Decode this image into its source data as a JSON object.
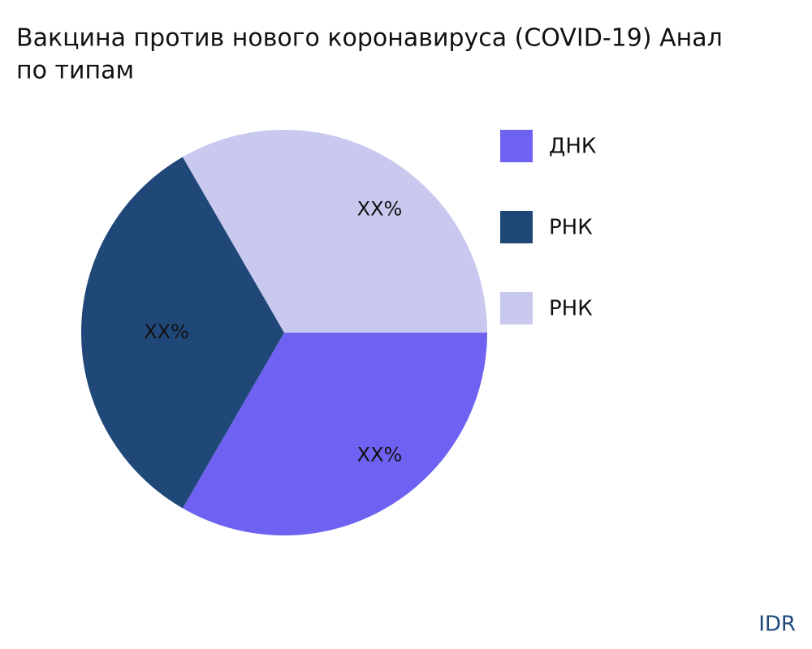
{
  "chart_data": {
    "type": "pie",
    "title_lines": [
      "Вакцина против нового коронавируса (COVID-19) Анал",
      "по типам"
    ],
    "categories": [
      "ДНК",
      "РНК",
      "РНК"
    ],
    "values": [
      33.33,
      33.33,
      33.33
    ],
    "value_labels": [
      "XX%",
      "XX%",
      "XX%"
    ],
    "colors": [
      "#6f62f2",
      "#1f4878",
      "#c9c9f0"
    ],
    "legend": "right"
  },
  "brand": "IDR"
}
